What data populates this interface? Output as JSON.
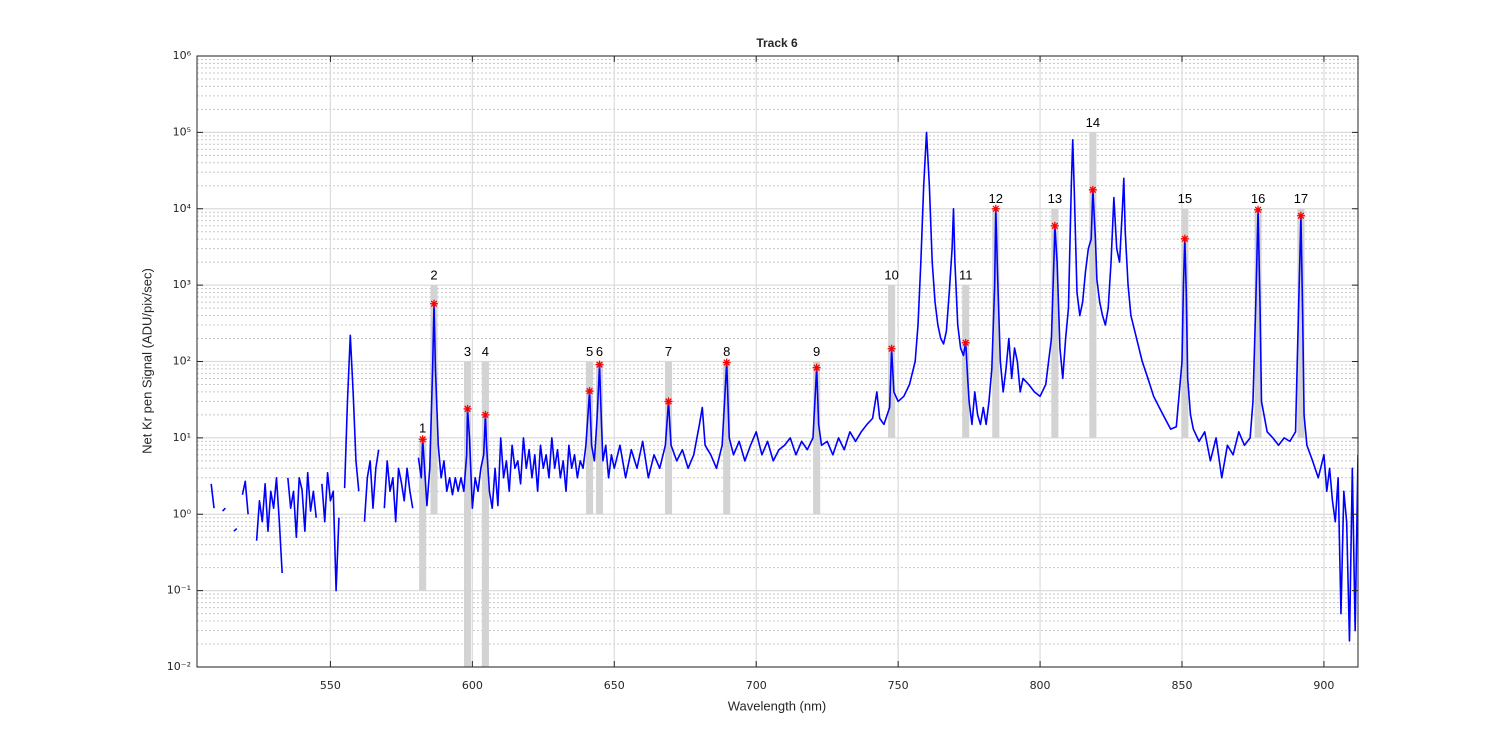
{
  "chart_data": {
    "type": "line",
    "title": "Track 6",
    "x_label": "Wavelength (nm)",
    "y_label": "Net Kr pen Signal (ADU/pix/sec)",
    "xlim": [
      503,
      912
    ],
    "ylim": [
      0.01,
      1000000
    ],
    "y_scale": "log",
    "grid": true,
    "minor_grid": true,
    "xticks": [
      550,
      600,
      650,
      700,
      750,
      800,
      850,
      900
    ],
    "yticks": [
      {
        "value": 0.01,
        "label": "10⁻²"
      },
      {
        "value": 0.1,
        "label": "10⁻¹"
      },
      {
        "value": 1,
        "label": "10⁰"
      },
      {
        "value": 10,
        "label": "10¹"
      },
      {
        "value": 100,
        "label": "10²"
      },
      {
        "value": 1000,
        "label": "10³"
      },
      {
        "value": 10000,
        "label": "10⁴"
      },
      {
        "value": 100000,
        "label": "10⁵"
      },
      {
        "value": 1000000,
        "label": "10⁶"
      }
    ],
    "series": [
      {
        "color": "#0000ff",
        "x": [
          508,
          509,
          510.5,
          512,
          513,
          514.5,
          516,
          517,
          518,
          519,
          520,
          521,
          522.5,
          524,
          525,
          526,
          527,
          528,
          529,
          530,
          531,
          532,
          533,
          534,
          535,
          536,
          537,
          538,
          539,
          540,
          541,
          542,
          543,
          544,
          545,
          546,
          547,
          548,
          549,
          550,
          551,
          552,
          553,
          553.5,
          554,
          554.5,
          555,
          556,
          557,
          558,
          559,
          560,
          561,
          562,
          563,
          564,
          565,
          566,
          567,
          568,
          569,
          570,
          571,
          572,
          573,
          574,
          575,
          576,
          577,
          578,
          579,
          580,
          581,
          582,
          582.5,
          583,
          584,
          585,
          586,
          586.5,
          587,
          588,
          589,
          590,
          591,
          592,
          593,
          594,
          595,
          596,
          597,
          598,
          598.3,
          599,
          600,
          601,
          602,
          603,
          604,
          604.6,
          605,
          606,
          607,
          608,
          609,
          610,
          611,
          612,
          613,
          614,
          615,
          616,
          617,
          618,
          619,
          620,
          621,
          622,
          623,
          624,
          625,
          626,
          627,
          628,
          629,
          630,
          631,
          632,
          633,
          634,
          635,
          636,
          637,
          638,
          639,
          640,
          641.3,
          642,
          643,
          644,
          644.8,
          645.5,
          646,
          647,
          648,
          649,
          650,
          652,
          654,
          656,
          658,
          660,
          662,
          664,
          666,
          668,
          669.1,
          670,
          672,
          674,
          676,
          678,
          680,
          681,
          682,
          684,
          686,
          688,
          689.6,
          690.5,
          692,
          694,
          696,
          698,
          700,
          702,
          704,
          706,
          708,
          710,
          712,
          714,
          716,
          718,
          720,
          721.3,
          722,
          723,
          725,
          727,
          729,
          731,
          733,
          735,
          737,
          739,
          741,
          742.5,
          743.5,
          745,
          747,
          747.7,
          748.5,
          750,
          752,
          754,
          756,
          757,
          758,
          759,
          760,
          761,
          762,
          763,
          764,
          765,
          766,
          767,
          768,
          769,
          769.5,
          770,
          771,
          772,
          773,
          773.8,
          774.5,
          775,
          776,
          777,
          778,
          779,
          780,
          781,
          782,
          783,
          784,
          784.4,
          785,
          786,
          787,
          788,
          789,
          790,
          791,
          792,
          793,
          794,
          796,
          798,
          800,
          802,
          804,
          805,
          805.2,
          806,
          807,
          808,
          809,
          810,
          811,
          811.5,
          812,
          813,
          814,
          815,
          816,
          817,
          818,
          818.6,
          819.5,
          820,
          821,
          822,
          823,
          824,
          825,
          826,
          827,
          828,
          829,
          829.5,
          830,
          831,
          832,
          834,
          836,
          838,
          840,
          842,
          844,
          846,
          848,
          850,
          850.5,
          851,
          851.5,
          852,
          853,
          854,
          856,
          858,
          860,
          862,
          864,
          866,
          868,
          870,
          872,
          874,
          875,
          876,
          876.8,
          877.5,
          878,
          880,
          882,
          884,
          886,
          888,
          890,
          891,
          891.9,
          892.5,
          893,
          894,
          896,
          898,
          900,
          901,
          902,
          903,
          904,
          905,
          906,
          907,
          908,
          909,
          910,
          911,
          912
        ],
        "values": [
          2.5,
          1.2,
          null,
          1.1,
          1.2,
          null,
          0.6,
          0.65,
          null,
          1.8,
          2.7,
          1.0,
          null,
          0.45,
          1.5,
          0.8,
          2.5,
          0.6,
          2,
          1.2,
          3,
          0.8,
          0.17,
          null,
          3,
          1.2,
          2,
          0.5,
          3,
          2.1,
          0.6,
          3.5,
          1.1,
          2,
          0.9,
          null,
          2.5,
          0.8,
          3.5,
          1.5,
          2,
          0.1,
          0.9,
          null,
          0.14,
          null,
          2.2,
          30,
          220,
          40,
          5,
          2,
          null,
          0.8,
          3,
          5,
          1.2,
          4,
          7,
          null,
          1.2,
          5,
          2,
          3,
          0.8,
          4,
          2.6,
          1.5,
          4,
          2,
          1.2,
          null,
          5.5,
          3,
          9.6,
          5,
          1.3,
          4,
          80,
          570,
          80,
          8,
          3,
          5,
          2,
          3,
          1.8,
          3,
          2,
          3,
          2,
          6,
          24,
          10,
          1.2,
          3,
          2,
          4,
          6,
          20,
          8,
          2,
          1.2,
          4,
          1.3,
          10,
          3,
          5,
          2,
          8,
          4,
          5,
          2.5,
          10,
          4,
          7,
          3,
          6,
          2,
          8,
          4,
          6,
          3,
          10,
          4,
          7,
          3,
          5,
          2,
          8,
          4,
          6,
          3,
          5,
          4,
          8,
          41,
          8,
          5,
          20,
          91,
          15,
          5,
          8,
          3,
          6,
          4,
          8,
          3,
          7,
          4,
          9,
          3,
          6,
          4,
          8,
          30,
          8,
          5,
          7,
          4,
          6,
          15,
          25,
          8,
          6,
          4,
          8,
          97,
          10,
          6,
          9,
          5,
          8,
          12,
          6,
          9,
          5,
          7,
          8,
          10,
          6,
          9,
          7,
          10,
          83,
          15,
          8,
          9,
          6,
          10,
          7,
          12,
          9,
          12,
          15,
          18,
          40,
          18,
          15,
          25,
          147,
          40,
          30,
          35,
          50,
          100,
          300,
          2000,
          20000,
          100000,
          20000,
          2000,
          600,
          300,
          200,
          170,
          250,
          800,
          3000,
          10000,
          2000,
          300,
          150,
          120,
          176,
          60,
          30,
          15,
          40,
          20,
          15,
          25,
          15,
          30,
          80,
          1000,
          10000,
          1500,
          100,
          40,
          80,
          200,
          60,
          150,
          100,
          40,
          60,
          50,
          40,
          35,
          50,
          200,
          3000,
          5970,
          2000,
          150,
          60,
          200,
          500,
          20000,
          80000,
          20000,
          800,
          400,
          600,
          1500,
          3000,
          4000,
          17700,
          4000,
          1200,
          600,
          400,
          300,
          500,
          2000,
          14000,
          3000,
          2000,
          10000,
          25000,
          5000,
          1000,
          400,
          200,
          100,
          60,
          35,
          25,
          18,
          13,
          14,
          100,
          1000,
          4040,
          800,
          60,
          20,
          13,
          9,
          12,
          5,
          10,
          3,
          8,
          6,
          12,
          8,
          10,
          30,
          600,
          9700,
          500,
          30,
          12,
          10,
          8,
          10,
          9,
          12,
          400,
          8090,
          400,
          20,
          8,
          5,
          3,
          6,
          2,
          4,
          1.5,
          0.8,
          3,
          0.05,
          2,
          0.8,
          0.022,
          4,
          0.03,
          6
        ]
      }
    ],
    "peaks": {
      "color": "#ff0000",
      "band_color": "#d3d3d3",
      "labels": [
        "1",
        "2",
        "3",
        "4",
        "5",
        "6",
        "7",
        "8",
        "9",
        "10",
        "11",
        "12",
        "13",
        "14",
        "15",
        "16",
        "17"
      ],
      "x": [
        582.5,
        586.5,
        598.3,
        604.6,
        641.3,
        644.8,
        669.1,
        689.6,
        721.3,
        747.7,
        773.8,
        784.4,
        805.2,
        818.6,
        851,
        876.8,
        891.9
      ],
      "values": [
        9.6,
        570,
        24,
        20,
        41,
        91,
        30,
        97,
        83,
        147,
        176,
        10000,
        5970,
        17700,
        4040,
        9700,
        8090
      ],
      "band_low": [
        0.1,
        1,
        0.01,
        0.01,
        1,
        1,
        1,
        1,
        1,
        10,
        10,
        10,
        10,
        10,
        10,
        10,
        10
      ],
      "band_high": [
        10,
        1000,
        100,
        100,
        100,
        100,
        100,
        100,
        100,
        1000,
        1000,
        10000,
        10000,
        100000,
        10000,
        10000,
        10000
      ]
    }
  }
}
